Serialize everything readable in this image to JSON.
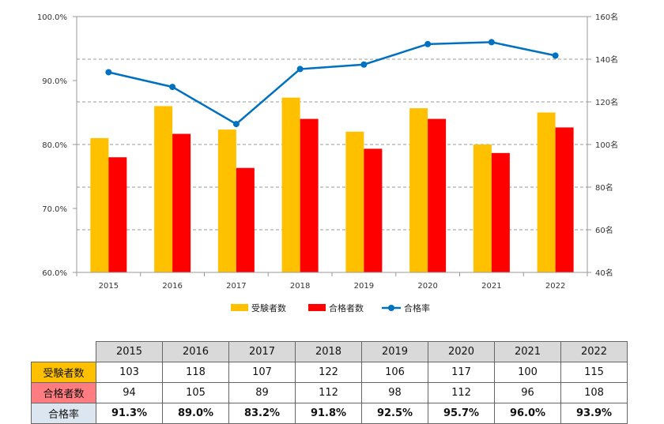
{
  "chart_data": {
    "type": "bar+line",
    "categories": [
      "2015",
      "2016",
      "2017",
      "2018",
      "2019",
      "2020",
      "2021",
      "2022"
    ],
    "series": [
      {
        "name": "受験者数",
        "kind": "bar",
        "axis": "right",
        "color": "#FFC000",
        "values": [
          103,
          118,
          107,
          122,
          106,
          117,
          100,
          115
        ]
      },
      {
        "name": "合格者数",
        "kind": "bar",
        "axis": "right",
        "color": "#FF0000",
        "values": [
          94,
          105,
          89,
          112,
          98,
          112,
          96,
          108
        ]
      },
      {
        "name": "合格率",
        "kind": "line",
        "axis": "left",
        "color": "#0070C0",
        "values": [
          91.3,
          89.0,
          83.2,
          91.8,
          92.5,
          95.7,
          96.0,
          93.9
        ]
      }
    ],
    "y_left": {
      "range": [
        60,
        100
      ],
      "ticks": [
        "60.0%",
        "70.0%",
        "80.0%",
        "90.0%",
        "100.0%"
      ]
    },
    "y_right": {
      "range": [
        40,
        160
      ],
      "ticks": [
        "40名",
        "60名",
        "80名",
        "100名",
        "120名",
        "140名",
        "160名"
      ]
    },
    "grid": "dashed horizontal",
    "legend": "bottom"
  },
  "table": {
    "header": [
      "2015",
      "2016",
      "2017",
      "2018",
      "2019",
      "2020",
      "2021",
      "2022"
    ],
    "rows": [
      {
        "label": "受験者数",
        "label_bg": "#FFC000",
        "values": [
          "103",
          "118",
          "107",
          "122",
          "106",
          "117",
          "100",
          "115"
        ]
      },
      {
        "label": "合格者数",
        "label_bg": "#FF7C80",
        "values": [
          "94",
          "105",
          "89",
          "112",
          "98",
          "112",
          "96",
          "108"
        ]
      },
      {
        "label": "合格率",
        "label_bg": "#DCE6F1",
        "values": [
          "91.3%",
          "89.0%",
          "83.2%",
          "91.8%",
          "92.5%",
          "95.7%",
          "96.0%",
          "93.9%"
        ]
      }
    ]
  }
}
